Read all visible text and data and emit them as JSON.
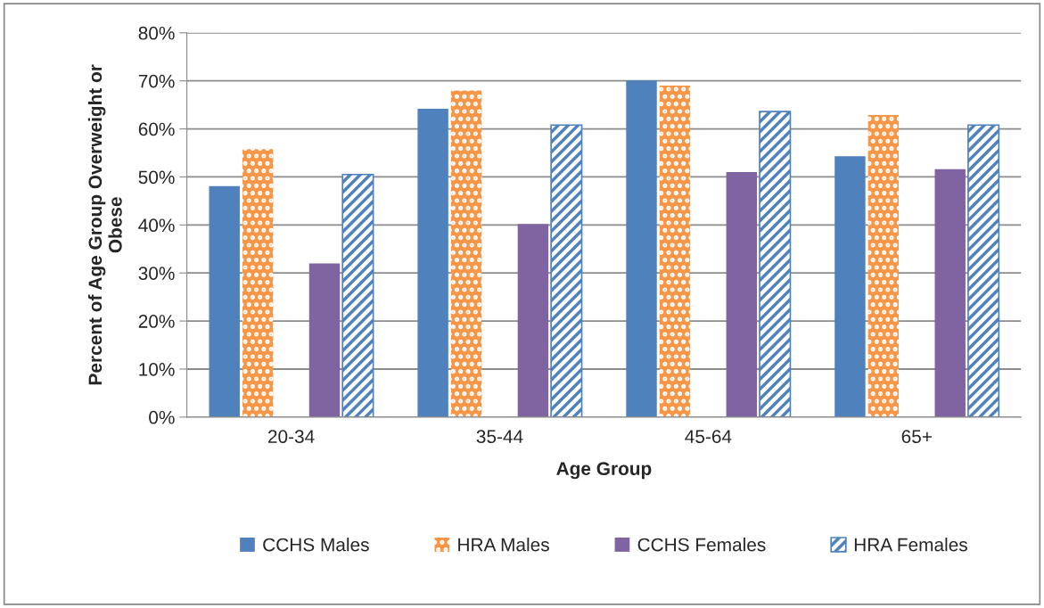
{
  "chart_data": {
    "type": "bar",
    "xlabel": "Age Group",
    "ylabel": "Percent of Age Group Overweight or\nObese",
    "categories": [
      "20-34",
      "35-44",
      "45-64",
      "65+"
    ],
    "series": [
      {
        "name": "CCHS Males",
        "color": "#4f81bd",
        "values": [
          48.1,
          64.2,
          70.1,
          54.3
        ]
      },
      {
        "name": "HRA Males",
        "color": "#f79646",
        "values": [
          55.8,
          68.0,
          69.0,
          62.9
        ]
      },
      {
        "name": "CCHS Females",
        "color": "#8064a2",
        "values": [
          32.0,
          40.2,
          51.0,
          51.6
        ]
      },
      {
        "name": "HRA Females",
        "color": "#4f81bd",
        "values": [
          50.5,
          60.8,
          63.6,
          60.8
        ]
      }
    ],
    "ylim": [
      0,
      80
    ],
    "yticks": [
      {
        "value": 0,
        "label": "0%"
      },
      {
        "value": 10,
        "label": "10%"
      },
      {
        "value": 20,
        "label": "20%"
      },
      {
        "value": 30,
        "label": "30%"
      },
      {
        "value": 40,
        "label": "40%"
      },
      {
        "value": 50,
        "label": "50%"
      },
      {
        "value": 60,
        "label": "60%"
      },
      {
        "value": 70,
        "label": "70%"
      },
      {
        "value": 80,
        "label": "80%"
      }
    ],
    "grid": "y",
    "legend": "bottom"
  }
}
